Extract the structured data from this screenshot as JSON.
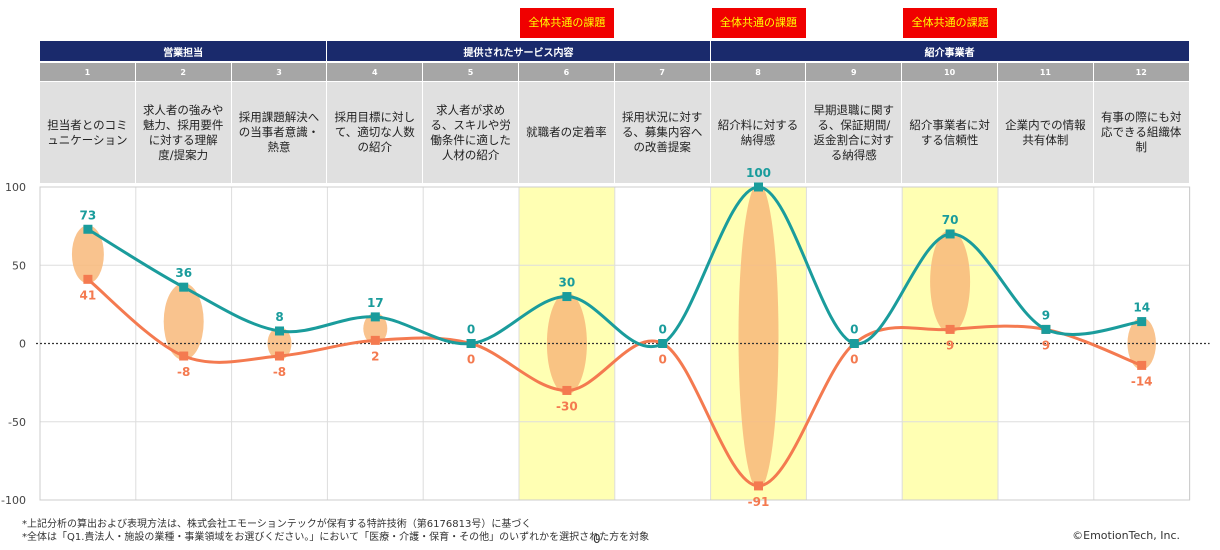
{
  "badges": [
    {
      "col": 5,
      "text": "全体共通の課題"
    },
    {
      "col": 7,
      "text": "全体共通の課題"
    },
    {
      "col": 9,
      "text": "全体共通の課題"
    }
  ],
  "groups": [
    {
      "label": "営業担当",
      "from": 0,
      "to": 2
    },
    {
      "label": "提供されたサービス内容",
      "from": 3,
      "to": 6
    },
    {
      "label": "紹介事業者",
      "from": 7,
      "to": 11
    }
  ],
  "chart_data": {
    "type": "line",
    "categories": [
      "担当者とのコミュニケーション",
      "求人者の強みや魅力、採用要件に対する理解度/提案力",
      "採用課題解決への当事者意識・熱意",
      "採用目標に対して、適切な人数の紹介",
      "求人者が求める、スキルや労働条件に適した人材の紹介",
      "就職者の定着率",
      "採用状況に対する、募集内容への改善提案",
      "紹介料に対する納得感",
      "早期退職に関する、保証期間/返金割合に対する納得感",
      "紹介事業者に対する信頼性",
      "企業内での情報共有体制",
      "有事の際にも対応できる組織体制"
    ],
    "numbers": [
      "1",
      "2",
      "3",
      "4",
      "5",
      "6",
      "7",
      "8",
      "9",
      "10",
      "11",
      "12"
    ],
    "series": [
      {
        "values": [
          73,
          36,
          8,
          17,
          0,
          30,
          0,
          100,
          0,
          70,
          9,
          14
        ],
        "color": "#1a9c9c"
      },
      {
        "values": [
          41,
          -8,
          -8,
          2,
          0,
          -30,
          0,
          -91,
          0,
          9,
          9,
          -14
        ],
        "color": "#f47a50"
      }
    ],
    "ylim": [
      -100,
      100
    ],
    "yticks": [
      100,
      50,
      0,
      -50,
      -100
    ],
    "highlight_columns": [
      5,
      7,
      9
    ],
    "highlight_color": "#ffffb3",
    "gap_color": "#f8b97a"
  },
  "footnotes": [
    "*上記分析の算出および表現方法は、株式会社エモーションテックが保有する特許技術（第6176813号）に基づく",
    "*全体は「Q1.貴法人・施設の業種・事業領域をお選びください。」において「医療・介護・保育・その他」のいずれかを選択された方を対象"
  ],
  "zero_mark": "0",
  "copyright": "©EmotionTech, Inc."
}
